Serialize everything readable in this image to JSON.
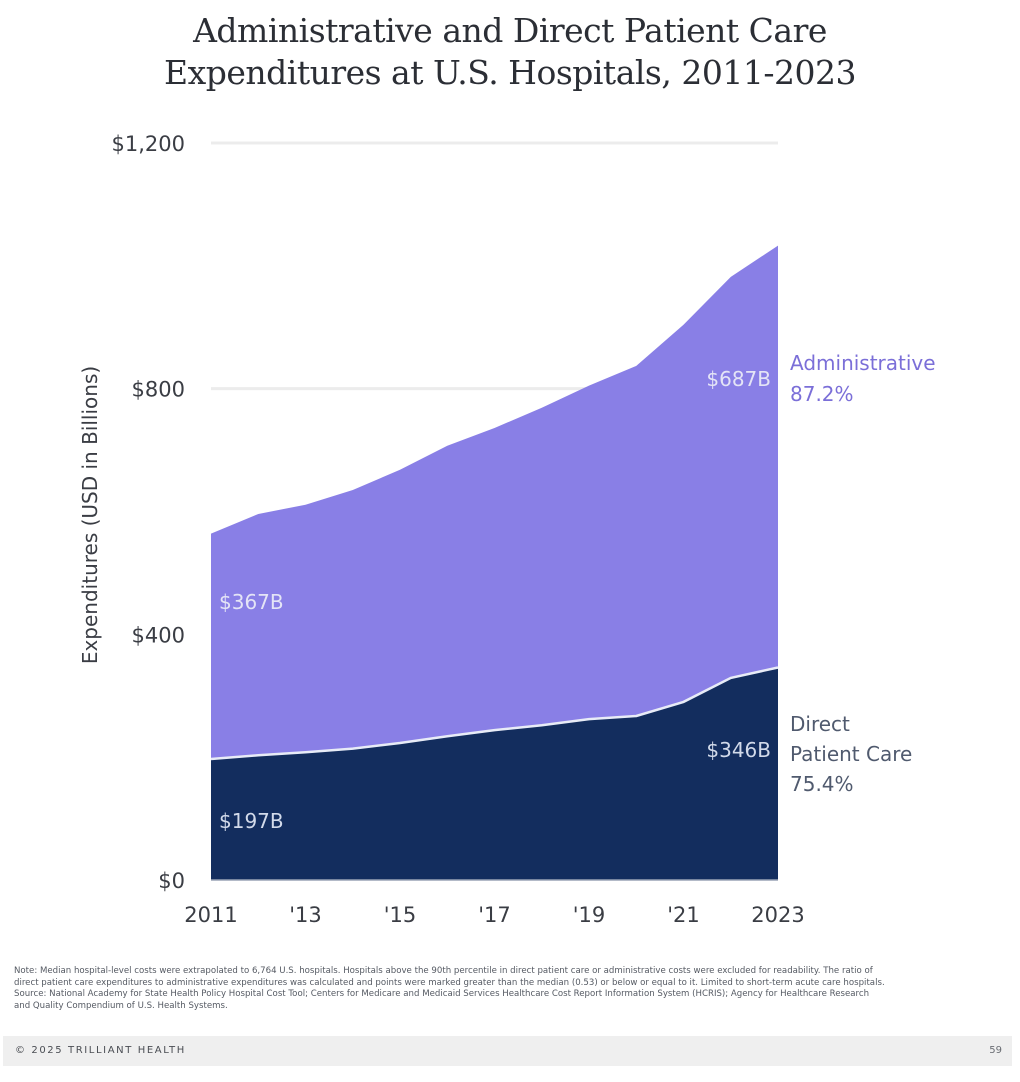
{
  "chart_data": {
    "type": "area",
    "stacked": true,
    "title": "Administrative and Direct Patient Care Expenditures at U.S. Hospitals, 2011-2023",
    "title_lines": [
      "Administrative and Direct Patient Care",
      "Expenditures at U.S. Hospitals, 2011-2023"
    ],
    "xlabel": "",
    "ylabel": "Expenditures (USD in Billions)",
    "x": [
      2011,
      2012,
      2013,
      2014,
      2015,
      2016,
      2017,
      2018,
      2019,
      2020,
      2021,
      2022,
      2023
    ],
    "x_ticks": [
      {
        "value": 2011,
        "label": "2011"
      },
      {
        "value": 2013,
        "label": "'13"
      },
      {
        "value": 2015,
        "label": "'15"
      },
      {
        "value": 2017,
        "label": "'17"
      },
      {
        "value": 2019,
        "label": "'19"
      },
      {
        "value": 2021,
        "label": "'21"
      },
      {
        "value": 2023,
        "label": "2023"
      }
    ],
    "ylim": [
      0,
      1200
    ],
    "y_ticks": [
      {
        "value": 0,
        "label": "$0"
      },
      {
        "value": 400,
        "label": "$400"
      },
      {
        "value": 800,
        "label": "$800"
      },
      {
        "value": 1200,
        "label": "$1,200"
      }
    ],
    "grid": true,
    "series": [
      {
        "name": "Direct Patient Care",
        "color": "#132d5e",
        "values": [
          197,
          203,
          208,
          214,
          223,
          234,
          244,
          252,
          262,
          267,
          290,
          329,
          346
        ],
        "start_label": "$197B",
        "end_label": "$346B",
        "legend_lines": [
          "Direct",
          "Patient Care",
          "75.4%"
        ],
        "growth_pct": "75.4%"
      },
      {
        "name": "Administrative",
        "color": "#897fe6",
        "values": [
          367,
          393,
          403,
          421,
          445,
          473,
          492,
          517,
          543,
          570,
          614,
          653,
          687
        ],
        "start_label": "$367B",
        "end_label": "$687B",
        "legend_lines": [
          "Administrative",
          "87.2%"
        ],
        "growth_pct": "87.2%"
      }
    ],
    "legend_placement": "right"
  },
  "note": {
    "lines": [
      "Note: Median hospital-level costs were extrapolated to 6,764 U.S. hospitals. Hospitals above the 90th percentile in direct patient care or administrative costs were excluded for readability. The ratio of",
      "direct patient care expenditures to administrative expenditures was calculated and points were marked greater than the median (0.53) or below or equal to it. Limited to short-term acute care hospitals.",
      "Source: National Academy for State Health Policy Hospital Cost Tool; Centers for Medicare and Medicaid Services Healthcare Cost Report Information System (HCRIS); Agency for Healthcare Research",
      "and Quality Compendium of U.S. Health Systems."
    ]
  },
  "footer": {
    "copyright": "© 2025 TRILLIANT HEALTH",
    "page_number": "59"
  }
}
